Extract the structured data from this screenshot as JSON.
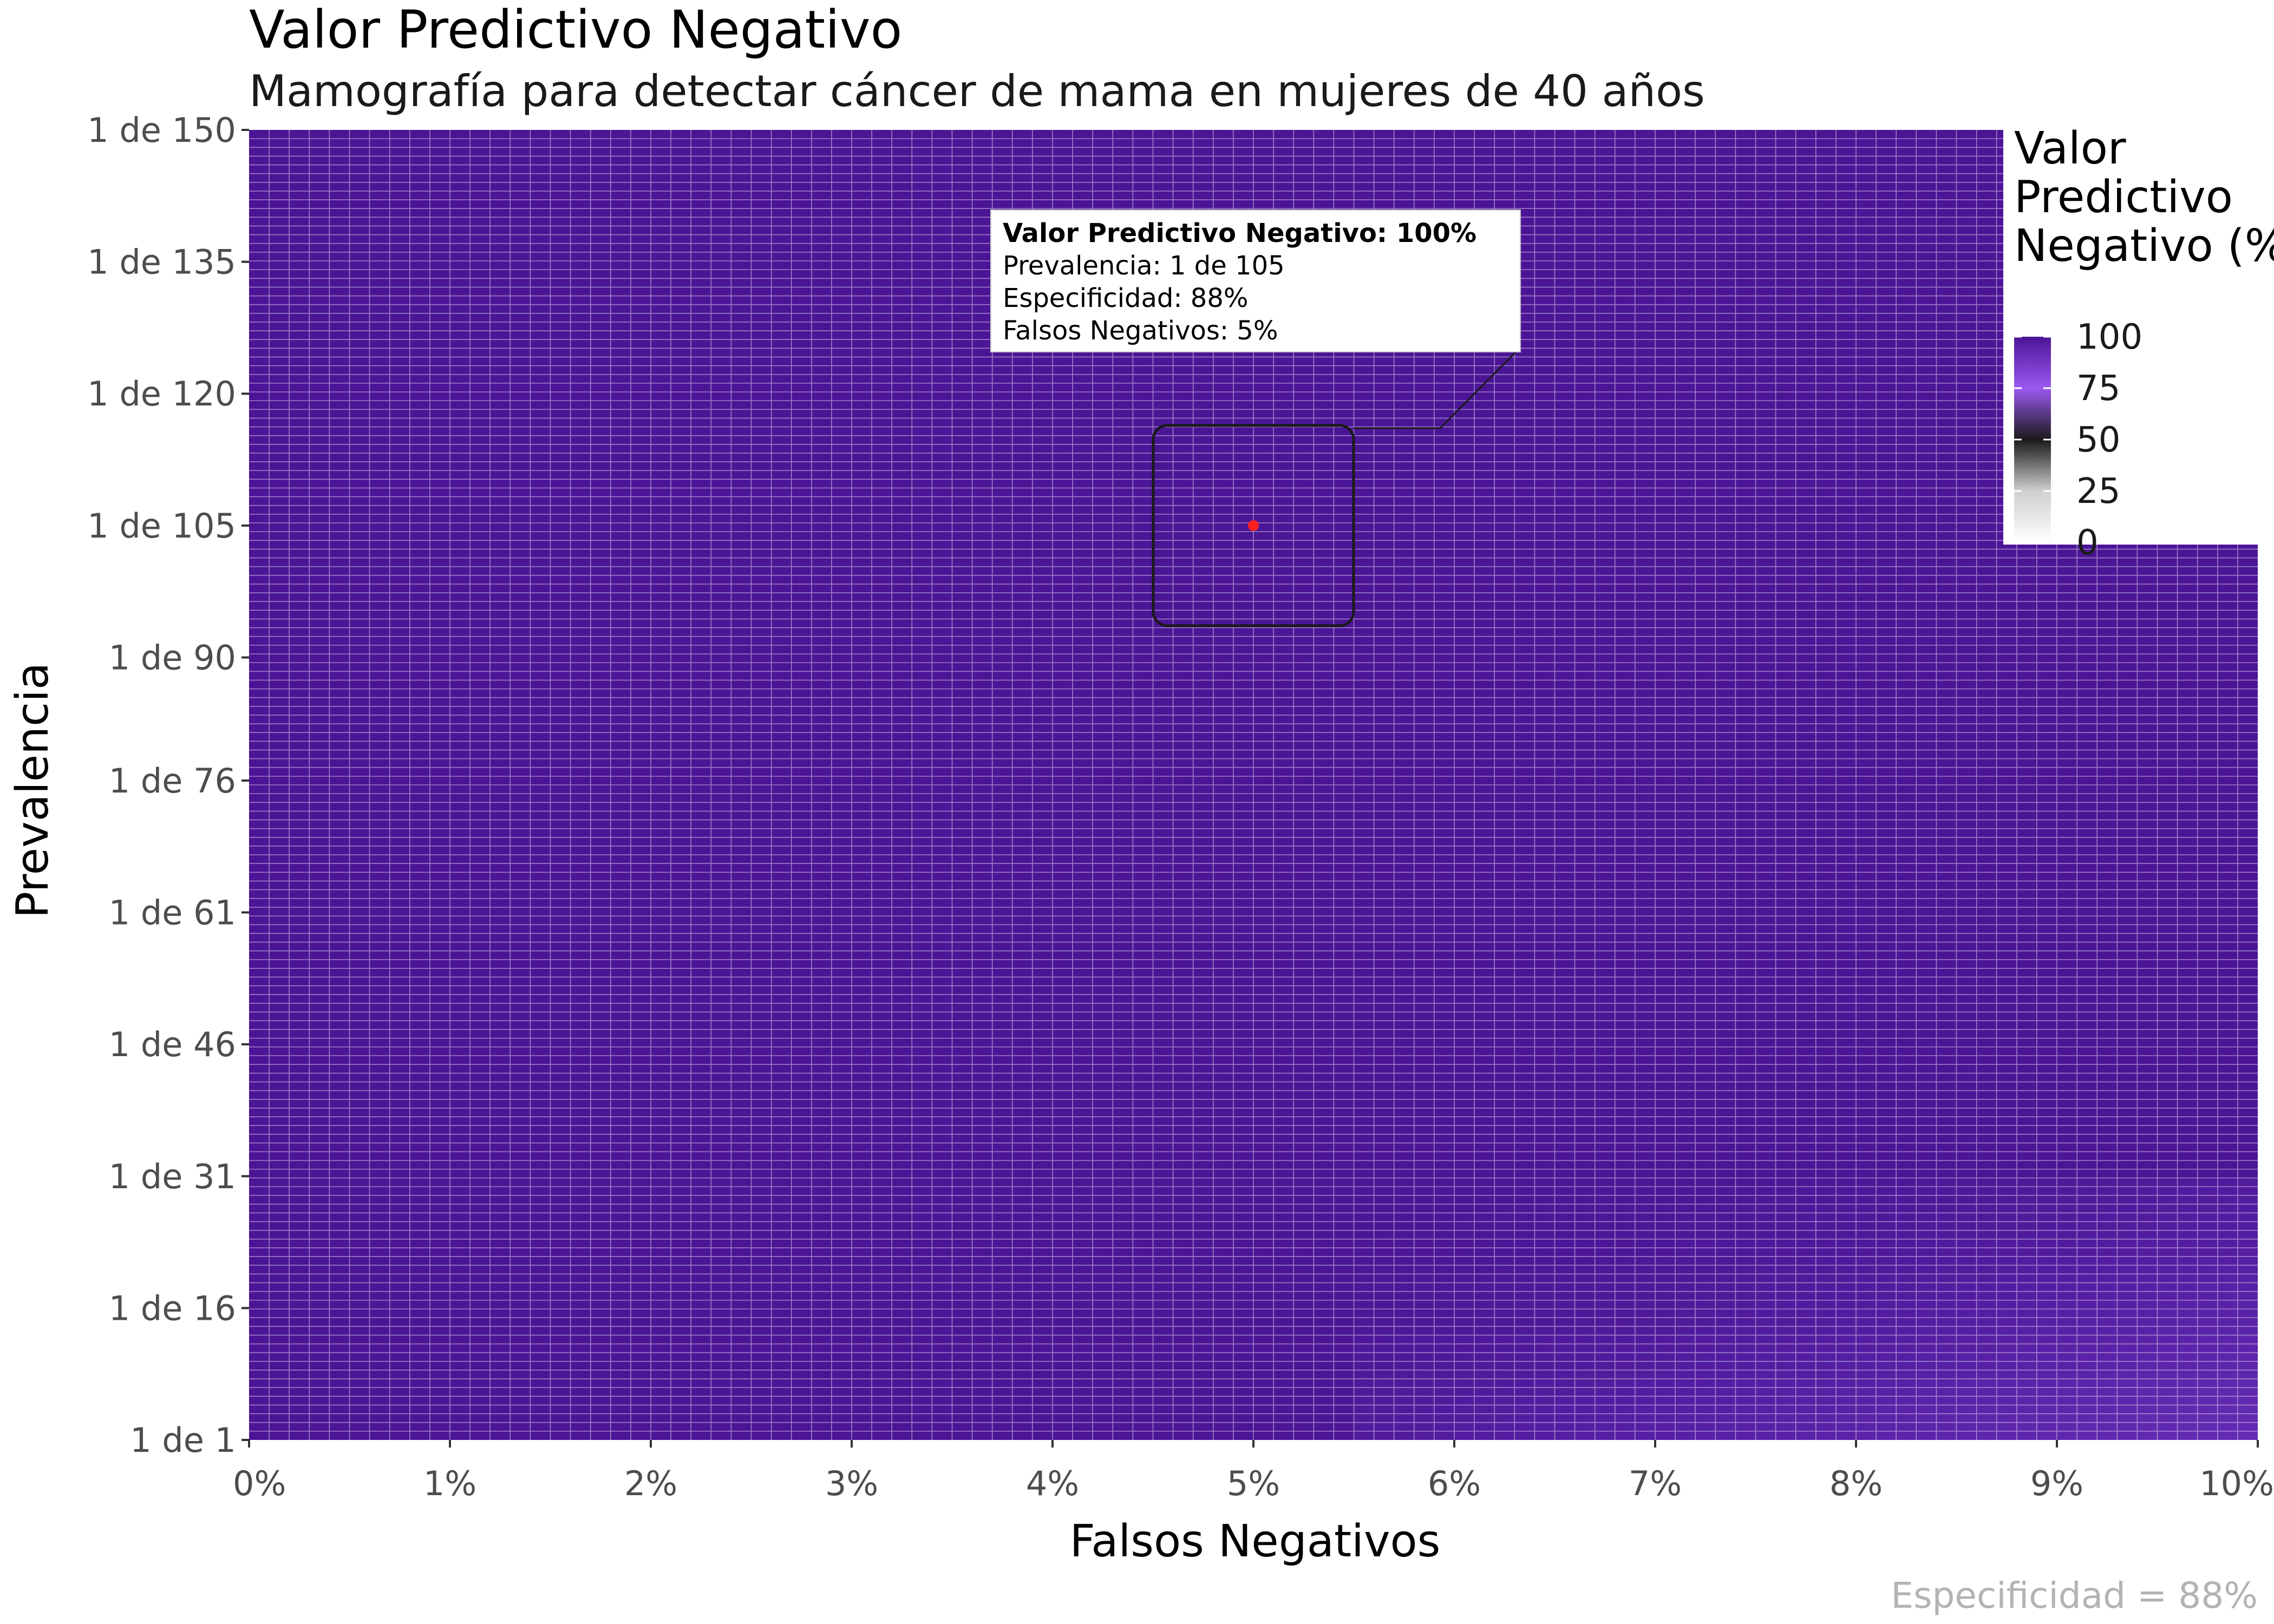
{
  "chart_data": {
    "type": "heatmap",
    "title": "Valor Predictivo Negativo",
    "subtitle": "Mamografía para detectar cáncer de mama en mujeres de 40 años",
    "xlabel": "Falsos Negativos",
    "ylabel": "Prevalencia",
    "x_ticks": [
      "0%",
      "1%",
      "2%",
      "3%",
      "4%",
      "5%",
      "6%",
      "7%",
      "8%",
      "9%",
      "10%"
    ],
    "x_tick_values": [
      0,
      1,
      2,
      3,
      4,
      5,
      6,
      7,
      8,
      9,
      10
    ],
    "xlim": [
      0,
      10
    ],
    "y_ticks": [
      "1 de 1",
      "1 de 16",
      "1 de 31",
      "1 de 46",
      "1 de 61",
      "1 de 76",
      "1 de 90",
      "1 de 105",
      "1 de 120",
      "1 de 135",
      "1 de 150"
    ],
    "y_tick_values": [
      1,
      16,
      31,
      46,
      61,
      76,
      90,
      105,
      120,
      135,
      150
    ],
    "ylim": [
      1,
      150
    ],
    "grid_columns": 100,
    "grid_rows": 150,
    "cell_value_range": [
      93,
      100
    ],
    "legend": {
      "title_lines": [
        "Valor",
        "Predictivo",
        "Negativo (%)"
      ],
      "labels": [
        "100",
        "75",
        "50",
        "25",
        "0"
      ],
      "values": [
        100,
        75,
        50,
        25,
        0
      ],
      "placement": "top-right",
      "colors": [
        "#ffffff",
        "#cfcfcf",
        "#1a1a1a",
        "#9b59f0",
        "#4b1596"
      ]
    },
    "highlight": {
      "x": 5,
      "y": 105,
      "point_color": "#ff2020",
      "lines": [
        "Valor Predictivo Negativo: 100%",
        "Prevalencia: 1 de 105",
        "Especificidad: 88%",
        "Falsos Negativos: 5%"
      ]
    },
    "caption": "Especificidad = 88%",
    "colors": {
      "fill": "#4b1596",
      "fill_low": "#6a2cc2",
      "grid_line": "#ffffff"
    }
  }
}
